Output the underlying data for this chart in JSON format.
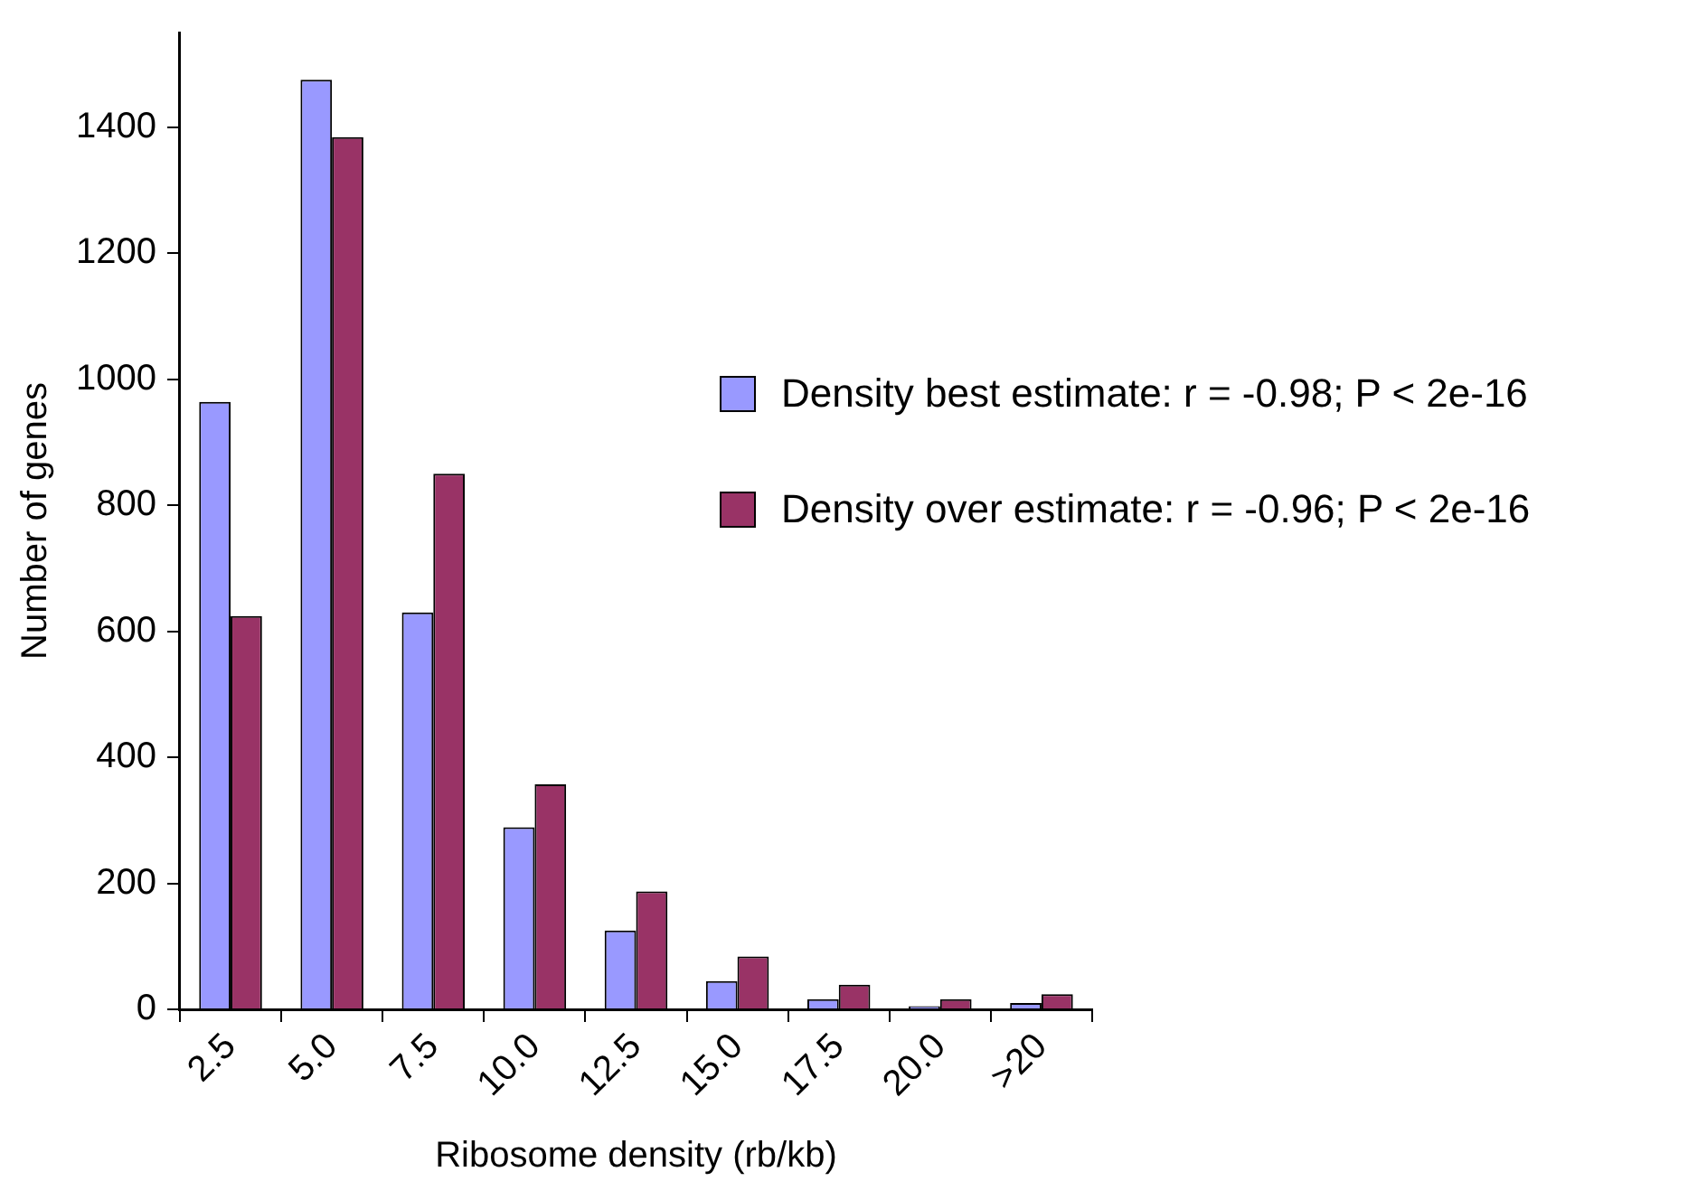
{
  "chart_data": {
    "type": "bar",
    "xlabel": "Ribosome density (rb/kb)",
    "ylabel": "Number of genes",
    "categories": [
      "2.5",
      "5.0",
      "7.5",
      "10.0",
      "12.5",
      "15.0",
      "17.5",
      "20.0",
      ">20"
    ],
    "series": [
      {
        "name": "Density best estimate: r = -0.98; P < 2e-16",
        "color": "#9999ff",
        "values": [
          964,
          1475,
          630,
          289,
          125,
          45,
          16,
          5,
          10
        ]
      },
      {
        "name": "Density over estimate: r = -0.96; P < 2e-16",
        "color": "#993366",
        "values": [
          624,
          1384,
          850,
          357,
          187,
          84,
          39,
          16,
          24
        ]
      }
    ],
    "ylim": [
      0,
      1550
    ],
    "yticks": [
      0,
      200,
      400,
      600,
      800,
      1000,
      1200,
      1400
    ],
    "grid": false,
    "legend": "right"
  }
}
